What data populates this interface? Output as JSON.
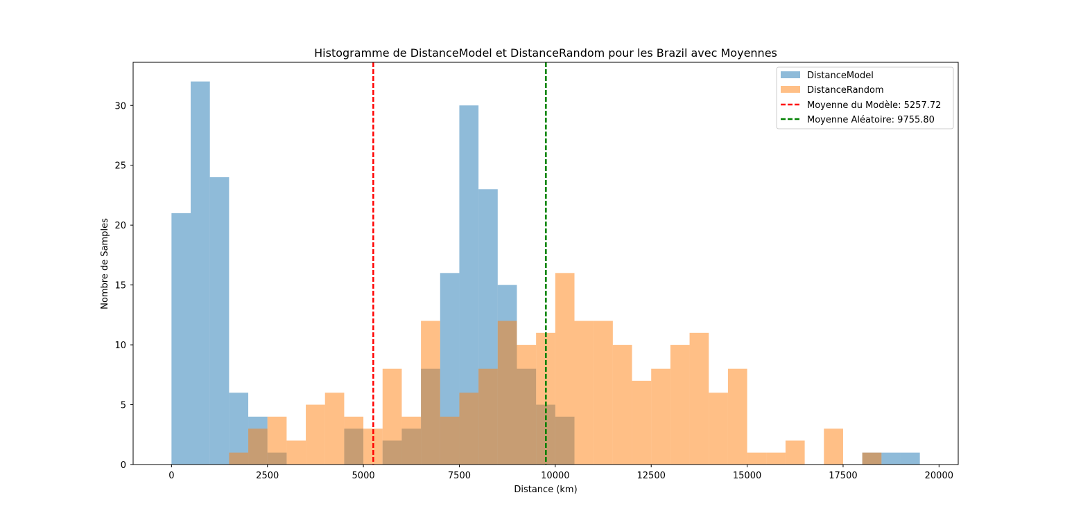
{
  "chart_data": {
    "type": "bar",
    "title": "Histogramme de DistanceModel et DistanceRandom pour les Brazil avec Moyennes",
    "xlabel": "Distance (km)",
    "ylabel": "Nombre de Samples",
    "xlim": [
      -1000,
      20500
    ],
    "ylim": [
      0,
      33.6
    ],
    "xticks": [
      0,
      2500,
      5000,
      7500,
      10000,
      12500,
      15000,
      17500,
      20000
    ],
    "xtick_labels": [
      "0",
      "2500",
      "5000",
      "7500",
      "10000",
      "12500",
      "15000",
      "17500",
      "20000"
    ],
    "yticks": [
      0,
      5,
      10,
      15,
      20,
      25,
      30
    ],
    "ytick_labels": [
      "0",
      "5",
      "10",
      "15",
      "20",
      "25",
      "30"
    ],
    "grid": false,
    "legend_position": "top-right",
    "series": [
      {
        "name": "DistanceModel",
        "color": "#1f77b4",
        "opacity": 0.5,
        "bin_edges": [
          0,
          500,
          1000,
          1500,
          2000,
          2500,
          3000,
          3500,
          4000,
          4500,
          5000,
          5500,
          6000,
          6500,
          7000,
          7500,
          8000,
          8500,
          9000,
          9500,
          10000,
          10500,
          11000,
          11500,
          12000,
          12500,
          13000,
          13500,
          14000,
          14500,
          15000,
          15500,
          16000,
          16500,
          17000,
          17500,
          18000,
          18500,
          19000,
          19500
        ],
        "values": [
          21,
          32,
          24,
          6,
          4,
          1,
          0,
          0,
          0,
          3,
          0,
          2,
          3,
          8,
          16,
          30,
          23,
          15,
          8,
          5,
          4,
          0,
          0,
          0,
          0,
          0,
          0,
          0,
          0,
          0,
          0,
          0,
          0,
          0,
          0,
          0,
          1,
          1,
          1
        ]
      },
      {
        "name": "DistanceRandom",
        "color": "#ff7f0e",
        "opacity": 0.5,
        "bin_edges": [
          1500,
          2000,
          2500,
          3000,
          3500,
          4000,
          4500,
          5000,
          5500,
          6000,
          6500,
          7000,
          7500,
          8000,
          8500,
          9000,
          9500,
          10000,
          10500,
          11000,
          11500,
          12000,
          12500,
          13000,
          13500,
          14000,
          14500,
          15000,
          15500,
          16000,
          16500,
          17000,
          17500,
          18000,
          18500
        ],
        "values": [
          1,
          3,
          4,
          2,
          5,
          6,
          4,
          3,
          8,
          4,
          12,
          4,
          6,
          8,
          12,
          10,
          11,
          16,
          12,
          12,
          10,
          7,
          8,
          10,
          11,
          6,
          8,
          1,
          1,
          2,
          0,
          3,
          0,
          1
        ]
      }
    ],
    "lines": [
      {
        "name": "Moyenne du Modèle: 5257.72",
        "x": 5257.72,
        "color": "#ff0000",
        "style": "dashed"
      },
      {
        "name": "Moyenne Aléatoire: 9755.80",
        "x": 9755.8,
        "color": "#008000",
        "style": "dashed"
      }
    ]
  }
}
